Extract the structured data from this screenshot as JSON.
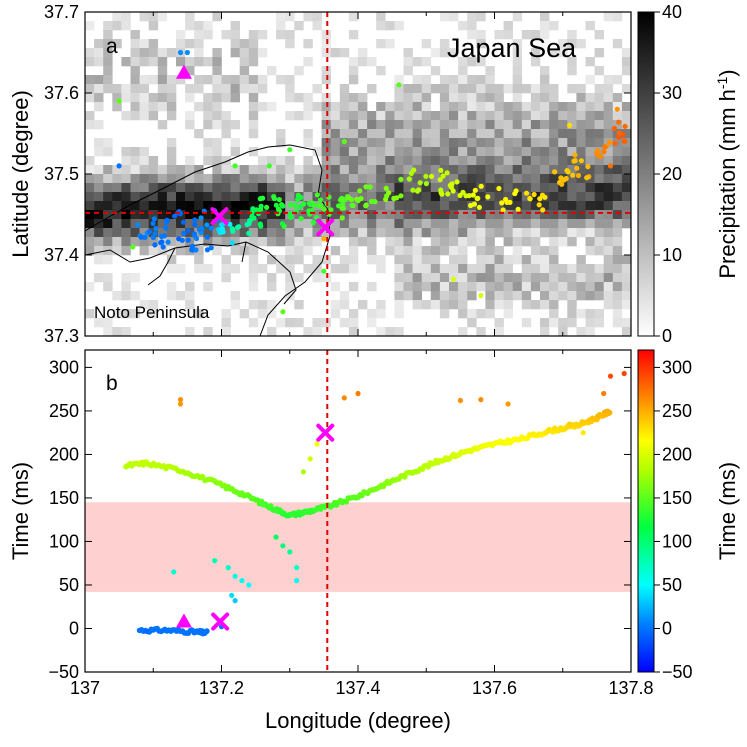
{
  "chart_data": [
    {
      "type": "heatmap+scatter",
      "panel_label": "a",
      "region_label": "Japan Sea",
      "place_label": "Noto Peninsula",
      "xlabel": "",
      "ylabel": "Latitude (degree)",
      "xlim": [
        137.0,
        137.8
      ],
      "ylim": [
        37.3,
        37.7
      ],
      "yticks": [
        "37.3",
        "37.4",
        "37.5",
        "37.6",
        "37.7"
      ],
      "colorbar": {
        "label": "Precipitation (mm h",
        "label_sup": "-1",
        "label_end": ")",
        "range": [
          0,
          40
        ],
        "ticks": [
          "0",
          "10",
          "20",
          "30",
          "40"
        ]
      },
      "ref_lines": {
        "longitude": 137.355,
        "latitude": 37.452
      },
      "cluster_points": [
        {
          "lon": 137.09,
          "lat": 37.43,
          "t": 5
        },
        {
          "lon": 137.11,
          "lat": 37.42,
          "t": 0
        },
        {
          "lon": 137.13,
          "lat": 37.44,
          "t": -2
        },
        {
          "lon": 137.15,
          "lat": 37.43,
          "t": -3
        },
        {
          "lon": 137.17,
          "lat": 37.42,
          "t": 0
        },
        {
          "lon": 137.18,
          "lat": 37.44,
          "t": 10
        },
        {
          "lon": 137.21,
          "lat": 37.43,
          "t": 40
        },
        {
          "lon": 137.23,
          "lat": 37.44,
          "t": 80
        },
        {
          "lon": 137.25,
          "lat": 37.45,
          "t": 110
        },
        {
          "lon": 137.27,
          "lat": 37.46,
          "t": 130
        },
        {
          "lon": 137.29,
          "lat": 37.45,
          "t": 125
        },
        {
          "lon": 137.31,
          "lat": 37.46,
          "t": 128
        },
        {
          "lon": 137.33,
          "lat": 37.45,
          "t": 135
        },
        {
          "lon": 137.35,
          "lat": 37.46,
          "t": 140
        },
        {
          "lon": 137.37,
          "lat": 37.47,
          "t": 145
        },
        {
          "lon": 137.39,
          "lat": 37.46,
          "t": 150
        },
        {
          "lon": 137.41,
          "lat": 37.47,
          "t": 155
        },
        {
          "lon": 137.45,
          "lat": 37.48,
          "t": 165
        },
        {
          "lon": 137.49,
          "lat": 37.49,
          "t": 180
        },
        {
          "lon": 137.52,
          "lat": 37.49,
          "t": 190
        },
        {
          "lon": 137.55,
          "lat": 37.48,
          "t": 200
        },
        {
          "lon": 137.58,
          "lat": 37.47,
          "t": 210
        },
        {
          "lon": 137.62,
          "lat": 37.47,
          "t": 220
        },
        {
          "lon": 137.66,
          "lat": 37.47,
          "t": 230
        },
        {
          "lon": 137.7,
          "lat": 37.5,
          "t": 240
        },
        {
          "lon": 137.73,
          "lat": 37.51,
          "t": 245
        },
        {
          "lon": 137.76,
          "lat": 37.53,
          "t": 265
        },
        {
          "lon": 137.78,
          "lat": 37.55,
          "t": 280
        }
      ],
      "scattered_points": [
        {
          "lon": 137.14,
          "lat": 37.65,
          "t": 10
        },
        {
          "lon": 137.15,
          "lat": 37.65,
          "t": 10
        },
        {
          "lon": 137.05,
          "lat": 37.59,
          "t": 150
        },
        {
          "lon": 137.05,
          "lat": 37.51,
          "t": 0
        },
        {
          "lon": 137.07,
          "lat": 37.41,
          "t": 150
        },
        {
          "lon": 137.22,
          "lat": 37.51,
          "t": 140
        },
        {
          "lon": 137.27,
          "lat": 37.51,
          "t": 140
        },
        {
          "lon": 137.3,
          "lat": 37.53,
          "t": 140
        },
        {
          "lon": 137.35,
          "lat": 37.42,
          "t": 250
        },
        {
          "lon": 137.35,
          "lat": 37.38,
          "t": 140
        },
        {
          "lon": 137.29,
          "lat": 37.33,
          "t": 150
        },
        {
          "lon": 137.38,
          "lat": 37.54,
          "t": 150
        },
        {
          "lon": 137.46,
          "lat": 37.61,
          "t": 150
        },
        {
          "lon": 137.54,
          "lat": 37.37,
          "t": 200
        },
        {
          "lon": 137.58,
          "lat": 37.35,
          "t": 200
        },
        {
          "lon": 137.71,
          "lat": 37.56,
          "t": 230
        },
        {
          "lon": 137.78,
          "lat": 37.58,
          "t": 260
        },
        {
          "lon": 137.77,
          "lat": 37.51,
          "t": 275
        }
      ],
      "markers": [
        {
          "kind": "triangle",
          "lon": 137.145,
          "lat": 37.625
        },
        {
          "kind": "cross",
          "lon": 137.197,
          "lat": 37.448
        },
        {
          "kind": "cross",
          "lon": 137.352,
          "lat": 37.434
        }
      ]
    },
    {
      "type": "scatter",
      "panel_label": "b",
      "xlabel": "Longitude (degree)",
      "ylabel": "Time (ms)",
      "xlim": [
        137.0,
        137.8
      ],
      "ylim": [
        -50,
        320
      ],
      "xticks": [
        "137",
        "137.2",
        "137.4",
        "137.6",
        "137.8"
      ],
      "yticks": [
        "−50",
        "0",
        "50",
        "100",
        "150",
        "200",
        "250",
        "300"
      ],
      "colorbar": {
        "label": "Time (ms)",
        "range": [
          -50,
          320
        ],
        "ticks": [
          "−50",
          "0",
          "50",
          "100",
          "150",
          "200",
          "250",
          "300"
        ]
      },
      "shaded_band": [
        42,
        145
      ],
      "ref_line": {
        "longitude": 137.355
      },
      "line_segments": [
        {
          "points": [
            [
              137.08,
              -2
            ],
            [
              137.12,
              -2
            ],
            [
              137.16,
              -4
            ],
            [
              137.18,
              -5
            ]
          ],
          "t": 0
        },
        {
          "points": [
            [
              137.06,
              187
            ],
            [
              137.09,
              190
            ],
            [
              137.14,
              182
            ],
            [
              137.19,
              168
            ],
            [
              137.23,
              155
            ],
            [
              137.27,
              140
            ],
            [
              137.3,
              130
            ],
            [
              137.33,
              135
            ],
            [
              137.36,
              141
            ],
            [
              137.4,
              152
            ],
            [
              137.44,
              166
            ],
            [
              137.48,
              180
            ],
            [
              137.52,
              193
            ],
            [
              137.56,
              204
            ],
            [
              137.6,
              212
            ],
            [
              137.64,
              218
            ],
            [
              137.68,
              227
            ],
            [
              137.72,
              233
            ],
            [
              137.75,
              242
            ],
            [
              137.77,
              250
            ]
          ],
          "t": "y"
        }
      ],
      "points": [
        {
          "x": 137.14,
          "y": 263
        },
        {
          "x": 137.14,
          "y": 258
        },
        {
          "x": 137.13,
          "y": 65
        },
        {
          "x": 137.19,
          "y": 78
        },
        {
          "x": 137.21,
          "y": 70
        },
        {
          "x": 137.22,
          "y": 60
        },
        {
          "x": 137.23,
          "y": 55
        },
        {
          "x": 137.24,
          "y": 50
        },
        {
          "x": 137.215,
          "y": 38
        },
        {
          "x": 137.22,
          "y": 32
        },
        {
          "x": 137.28,
          "y": 105
        },
        {
          "x": 137.29,
          "y": 95
        },
        {
          "x": 137.3,
          "y": 88
        },
        {
          "x": 137.31,
          "y": 70
        },
        {
          "x": 137.31,
          "y": 55
        },
        {
          "x": 137.32,
          "y": 180
        },
        {
          "x": 137.33,
          "y": 195
        },
        {
          "x": 137.34,
          "y": 212
        },
        {
          "x": 137.38,
          "y": 265
        },
        {
          "x": 137.4,
          "y": 270
        },
        {
          "x": 137.55,
          "y": 262
        },
        {
          "x": 137.58,
          "y": 263
        },
        {
          "x": 137.62,
          "y": 258
        },
        {
          "x": 137.71,
          "y": 235
        },
        {
          "x": 137.73,
          "y": 225
        },
        {
          "x": 137.76,
          "y": 270
        },
        {
          "x": 137.77,
          "y": 290
        },
        {
          "x": 137.79,
          "y": 293
        },
        {
          "x": 137.09,
          "y": -3
        },
        {
          "x": 137.2,
          "y": 2
        }
      ],
      "markers": [
        {
          "kind": "triangle",
          "x": 137.145,
          "y": 8
        },
        {
          "kind": "cross",
          "x": 137.198,
          "y": 8
        },
        {
          "kind": "cross",
          "x": 137.352,
          "y": 225
        }
      ]
    }
  ]
}
